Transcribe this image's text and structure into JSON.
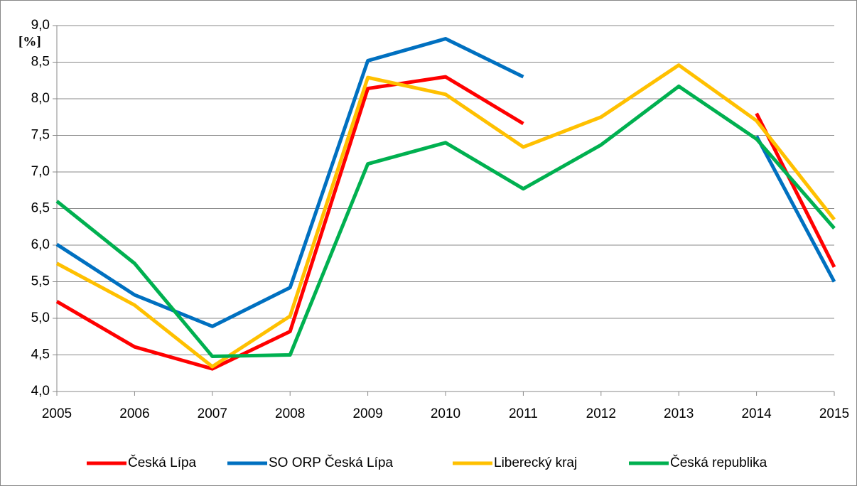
{
  "chart_data": {
    "type": "line",
    "y_label": "[%]",
    "categories": [
      "2005",
      "2006",
      "2007",
      "2008",
      "2009",
      "2010",
      "2011",
      "2012",
      "2013",
      "2014",
      "2015"
    ],
    "series": [
      {
        "name": "Česká Lípa",
        "color": "#ff0000",
        "values": [
          5.23,
          4.61,
          4.31,
          4.82,
          8.14,
          8.3,
          7.66,
          null,
          null,
          7.8,
          5.7
        ]
      },
      {
        "name": "SO ORP Česká Lípa",
        "color": "#0070c0",
        "values": [
          6.01,
          5.32,
          4.89,
          5.42,
          8.52,
          8.82,
          8.3,
          null,
          null,
          7.49,
          5.5
        ]
      },
      {
        "name": "Liberecký kraj",
        "color": "#ffc000",
        "values": [
          5.75,
          5.18,
          4.34,
          5.03,
          8.29,
          8.06,
          7.34,
          7.75,
          8.46,
          7.7,
          6.35
        ]
      },
      {
        "name": "Česká republika",
        "color": "#00b050",
        "values": [
          6.6,
          5.75,
          4.48,
          4.5,
          7.11,
          7.4,
          6.77,
          7.37,
          8.17,
          7.45,
          6.23
        ]
      }
    ],
    "ylim": [
      4.0,
      9.0
    ],
    "yticks": [
      {
        "value": 4.0,
        "label": "4,0"
      },
      {
        "value": 4.5,
        "label": "4,5"
      },
      {
        "value": 5.0,
        "label": "5,0"
      },
      {
        "value": 5.5,
        "label": "5,5"
      },
      {
        "value": 6.0,
        "label": "6,0"
      },
      {
        "value": 6.5,
        "label": "6,5"
      },
      {
        "value": 7.0,
        "label": "7,0"
      },
      {
        "value": 7.5,
        "label": "7,5"
      },
      {
        "value": 8.0,
        "label": "8,0"
      },
      {
        "value": 8.5,
        "label": "8,5"
      },
      {
        "value": 9.0,
        "label": "9,0"
      }
    ],
    "grid": true,
    "legend": "bottom"
  }
}
